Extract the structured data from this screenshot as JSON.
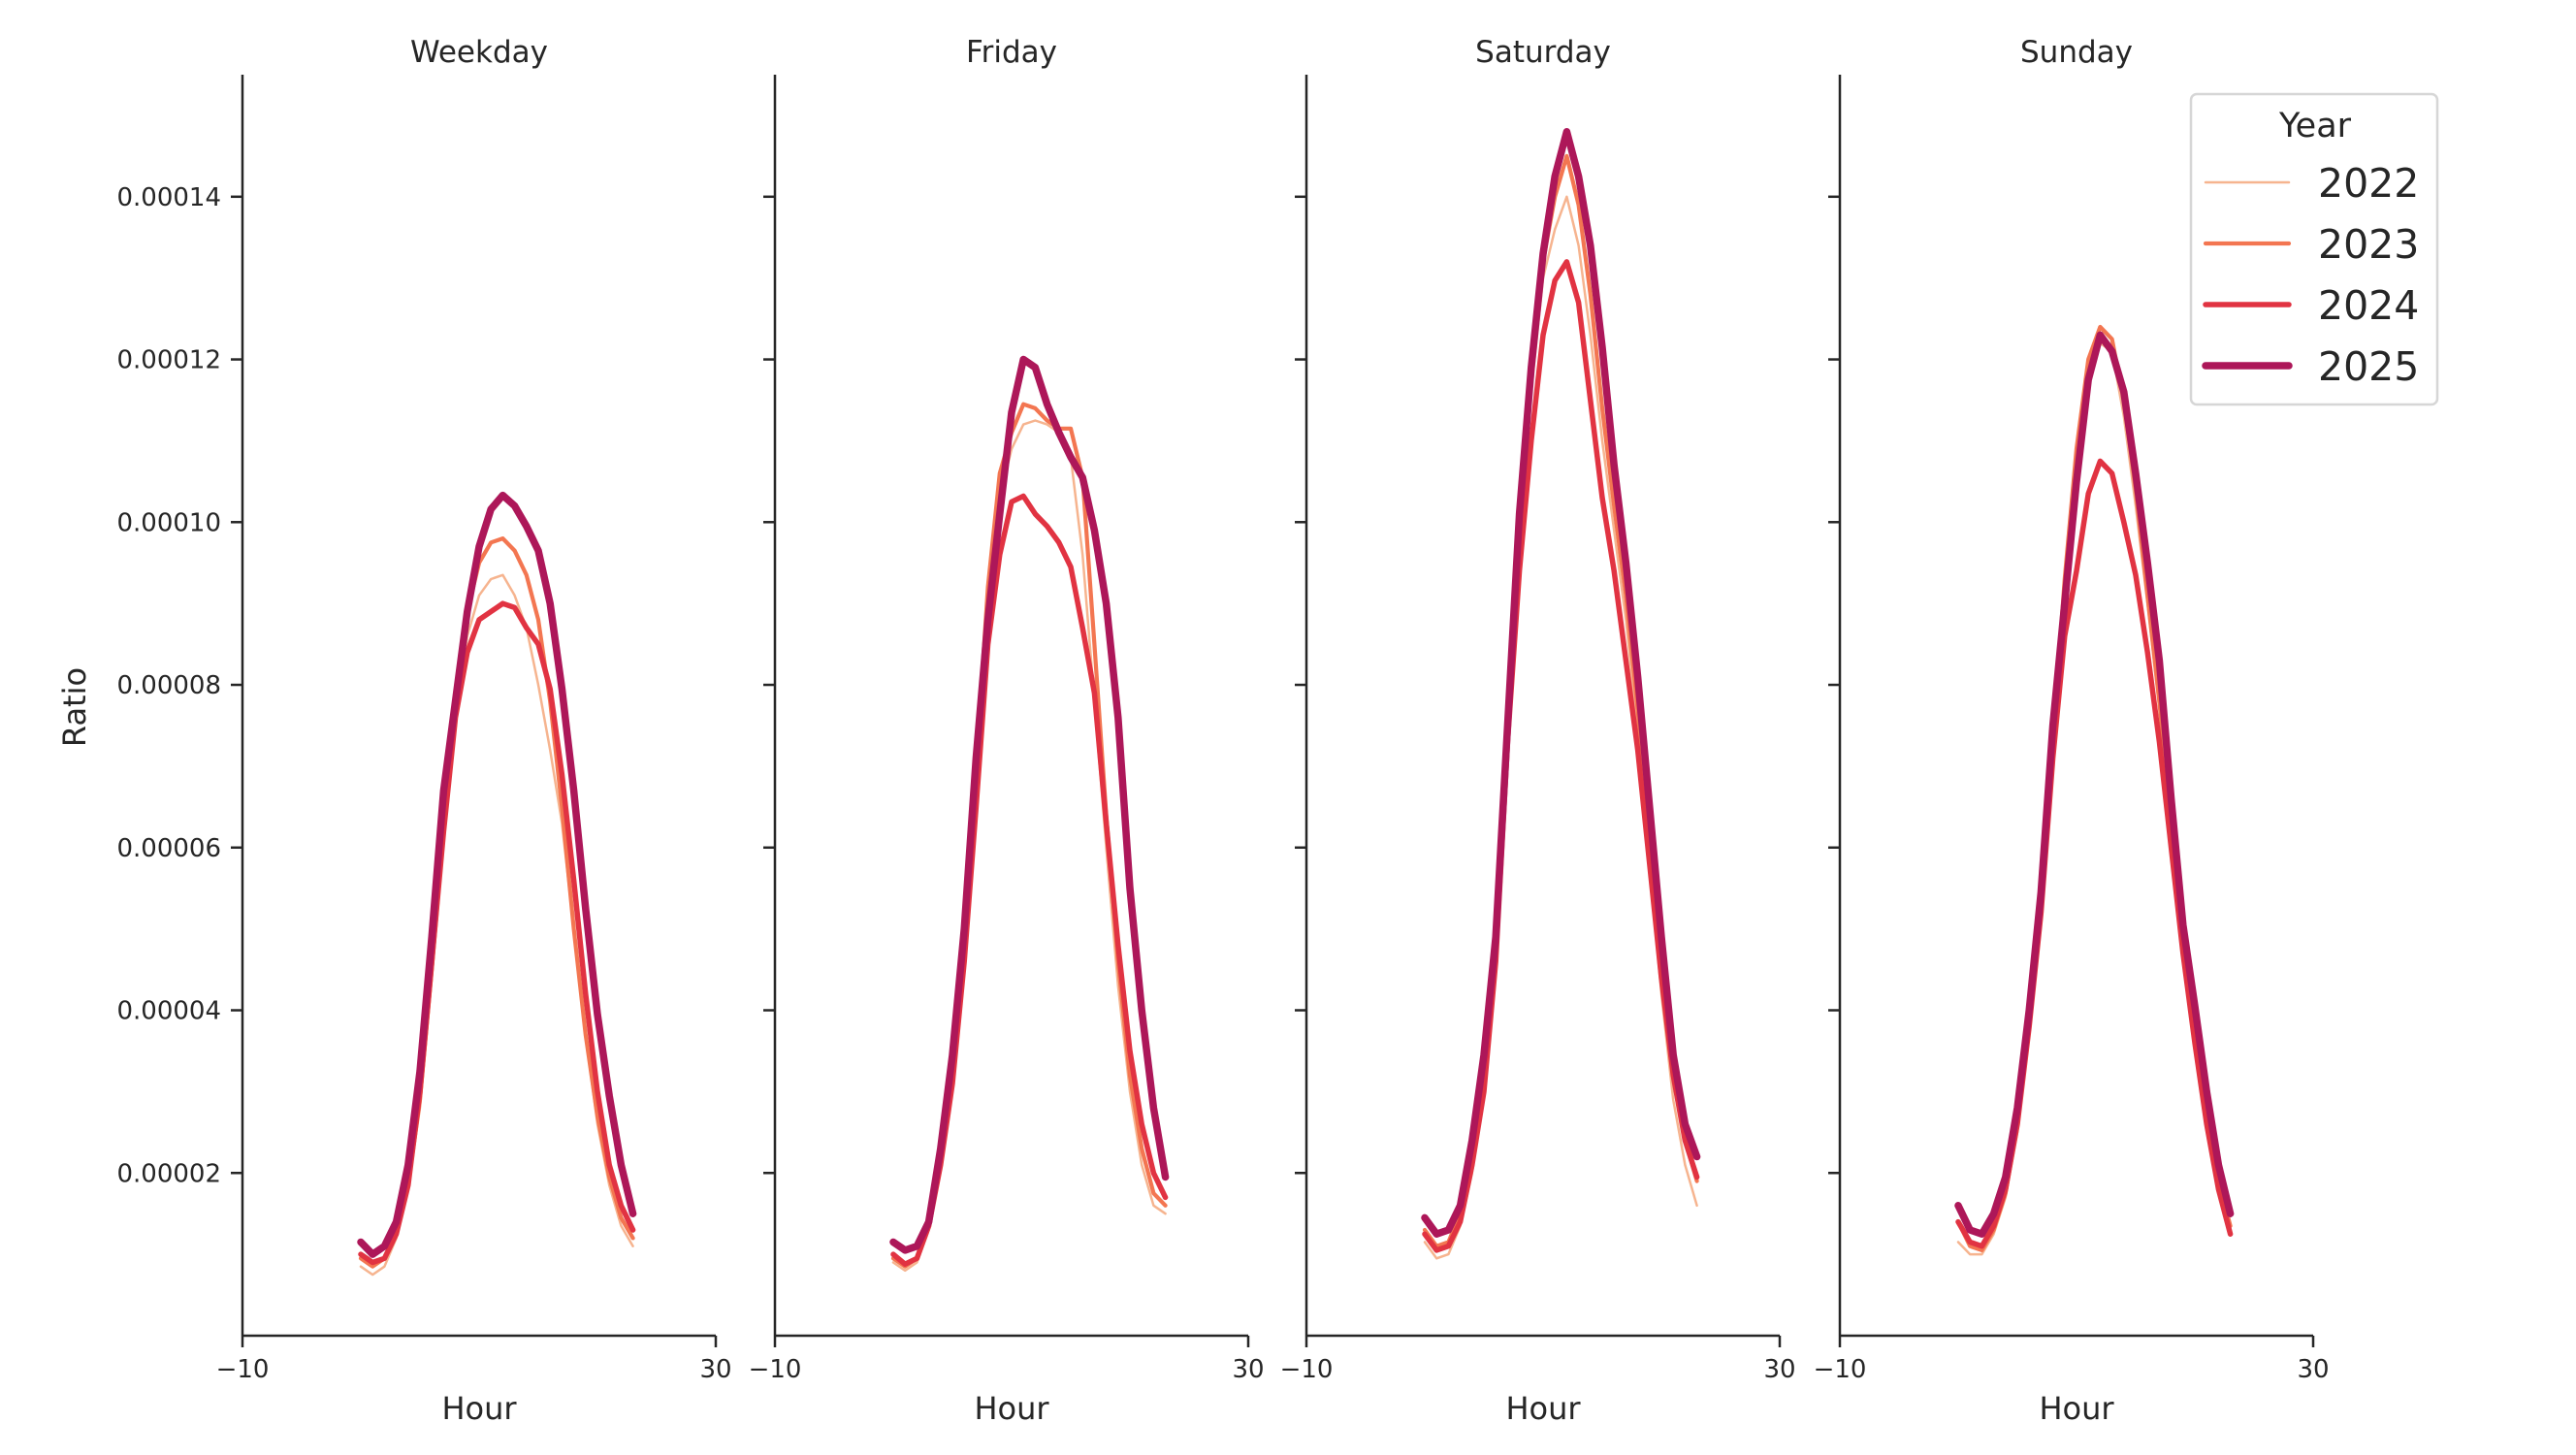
{
  "chart_data": {
    "type": "line",
    "xlabel": "Hour",
    "ylabel": "Ratio",
    "xlim": [
      -10,
      30
    ],
    "ylim": [
      0,
      0.000155
    ],
    "xticks": [
      -10,
      30
    ],
    "xtick_labels": [
      "−10",
      "30"
    ],
    "yticks": [
      2e-05,
      4e-05,
      6e-05,
      8e-05,
      0.0001,
      0.00012,
      0.00014
    ],
    "ytick_labels": [
      "0.00002",
      "0.00004",
      "0.00006",
      "0.00008",
      "0.00010",
      "0.00012",
      "0.00014"
    ],
    "grid": false,
    "legend": {
      "title": "Year",
      "placement": "top-right"
    },
    "x": [
      0,
      1,
      2,
      3,
      4,
      5,
      6,
      7,
      8,
      9,
      10,
      11,
      12,
      13,
      14,
      15,
      16,
      17,
      18,
      19,
      20,
      21,
      22,
      23
    ],
    "series_styles": [
      {
        "name": "2022",
        "color": "#f6b48f"
      },
      {
        "name": "2023",
        "color": "#f37651"
      },
      {
        "name": "2024",
        "color": "#e13342"
      },
      {
        "name": "2025",
        "color": "#ad1759"
      }
    ],
    "panels": [
      {
        "title": "Weekday",
        "series": [
          {
            "name": "2022",
            "values": [
              8.5e-06,
              7.5e-06,
              8.5e-06,
              1.2e-05,
              1.8e-05,
              2.8e-05,
              4.4e-05,
              6.1e-05,
              7.6e-05,
              8.6e-05,
              9.1e-05,
              9.3e-05,
              9.35e-05,
              9.1e-05,
              8.7e-05,
              8e-05,
              7.2e-05,
              6.3e-05,
              5e-05,
              3.7e-05,
              2.6e-05,
              1.85e-05,
              1.35e-05,
              1.1e-05
            ]
          },
          {
            "name": "2023",
            "values": [
              9.5e-06,
              8.5e-06,
              9.5e-06,
              1.25e-05,
              1.85e-05,
              2.9e-05,
              4.5e-05,
              6.2e-05,
              7.7e-05,
              8.9e-05,
              9.5e-05,
              9.75e-05,
              9.8e-05,
              9.65e-05,
              9.35e-05,
              8.8e-05,
              7.8e-05,
              6.5e-05,
              5e-05,
              3.7e-05,
              2.7e-05,
              1.95e-05,
              1.45e-05,
              1.2e-05
            ]
          },
          {
            "name": "2024",
            "values": [
              1e-05,
              9e-06,
              9.5e-06,
              1.25e-05,
              1.85e-05,
              3e-05,
              4.6e-05,
              6.2e-05,
              7.6e-05,
              8.4e-05,
              8.8e-05,
              8.9e-05,
              9e-05,
              8.95e-05,
              8.7e-05,
              8.5e-05,
              7.95e-05,
              6.9e-05,
              5.6e-05,
              4.2e-05,
              3e-05,
              2.1e-05,
              1.6e-05,
              1.3e-05
            ]
          },
          {
            "name": "2025",
            "values": [
              1.15e-05,
              1e-05,
              1.1e-05,
              1.4e-05,
              2.1e-05,
              3.25e-05,
              4.9e-05,
              6.7e-05,
              7.8e-05,
              8.9e-05,
              9.7e-05,
              0.0001016,
              0.0001033,
              0.000102,
              9.95e-05,
              9.65e-05,
              9e-05,
              7.95e-05,
              6.7e-05,
              5.25e-05,
              3.95e-05,
              2.95e-05,
              2.1e-05,
              1.5e-05
            ]
          }
        ]
      },
      {
        "title": "Friday",
        "series": [
          {
            "name": "2022",
            "values": [
              9e-06,
              8e-06,
              9e-06,
              1.3e-05,
              2.1e-05,
              3.2e-05,
              4.8e-05,
              6.8e-05,
              8.9e-05,
              0.000103,
              0.000109,
              0.000112,
              0.0001125,
              0.000112,
              0.000111,
              0.000108,
              9.6e-05,
              7.8e-05,
              6e-05,
              4.3e-05,
              3e-05,
              2.1e-05,
              1.6e-05,
              1.5e-05
            ]
          },
          {
            "name": "2023",
            "values": [
              9.5e-06,
              8.5e-06,
              9.5e-06,
              1.35e-05,
              2.2e-05,
              3.3e-05,
              4.9e-05,
              7e-05,
              9.2e-05,
              0.000106,
              0.000111,
              0.0001145,
              0.000114,
              0.0001125,
              0.0001115,
              0.0001115,
              0.0001055,
              8.5e-05,
              6.4e-05,
              4.6e-05,
              3.2e-05,
              2.3e-05,
              1.75e-05,
              1.6e-05
            ]
          },
          {
            "name": "2024",
            "values": [
              1e-05,
              8.8e-06,
              9.5e-06,
              1.35e-05,
              2.1e-05,
              3.1e-05,
              4.6e-05,
              6.5e-05,
              8.5e-05,
              9.6e-05,
              0.0001025,
              0.0001032,
              0.000101,
              9.95e-05,
              9.75e-05,
              9.45e-05,
              8.7e-05,
              7.9e-05,
              6.3e-05,
              4.8e-05,
              3.5e-05,
              2.6e-05,
              2e-05,
              1.7e-05
            ]
          },
          {
            "name": "2025",
            "values": [
              1.15e-05,
              1.05e-05,
              1.1e-05,
              1.4e-05,
              2.3e-05,
              3.45e-05,
              5e-05,
              7.1e-05,
              8.8e-05,
              0.000101,
              0.0001135,
              0.00012,
              0.000119,
              0.0001145,
              0.000111,
              0.000108,
              0.0001055,
              9.9e-05,
              9e-05,
              7.6e-05,
              5.5e-05,
              4e-05,
              2.8e-05,
              1.95e-05
            ]
          }
        ]
      },
      {
        "title": "Saturday",
        "series": [
          {
            "name": "2022",
            "values": [
              1.15e-05,
              9.5e-06,
              1e-05,
              1.35e-05,
              2e-05,
              3e-05,
              4.5e-05,
              7.1e-05,
              9.6e-05,
              0.000116,
              0.00013,
              0.000136,
              0.00014,
              0.000134,
              0.000123,
              0.00011,
              9.9e-05,
              8.8e-05,
              7.4e-05,
              5.8e-05,
              4.2e-05,
              2.9e-05,
              2.1e-05,
              1.6e-05
            ]
          },
          {
            "name": "2023",
            "values": [
              1.3e-05,
              1.1e-05,
              1.15e-05,
              1.5e-05,
              2.2e-05,
              3.2e-05,
              4.7e-05,
              7.3e-05,
              9.8e-05,
              0.000118,
              0.000132,
              0.00014,
              0.000145,
              0.000139,
              0.000128,
              0.000114,
              0.000102,
              9.1e-05,
              7.7e-05,
              6.1e-05,
              4.5e-05,
              3.2e-05,
              2.4e-05,
              1.9e-05
            ]
          },
          {
            "name": "2024",
            "values": [
              1.25e-05,
              1.05e-05,
              1.1e-05,
              1.4e-05,
              2.1e-05,
              3e-05,
              4.6e-05,
              7.3e-05,
              9.4e-05,
              0.00011,
              0.000123,
              0.0001297,
              0.000132,
              0.000127,
              0.000115,
              0.000103,
              9.4e-05,
              8.3e-05,
              7.2e-05,
              5.8e-05,
              4.4e-05,
              3.2e-05,
              2.4e-05,
              1.95e-05
            ]
          },
          {
            "name": "2025",
            "values": [
              1.45e-05,
              1.25e-05,
              1.3e-05,
              1.6e-05,
              2.4e-05,
              3.45e-05,
              4.9e-05,
              7.5e-05,
              0.000101,
              0.000119,
              0.000133,
              0.0001425,
              0.000148,
              0.0001425,
              0.000134,
              0.0001215,
              0.000107,
              9.5e-05,
              8.1e-05,
              6.5e-05,
              4.9e-05,
              3.45e-05,
              2.6e-05,
              2.2e-05
            ]
          }
        ]
      },
      {
        "title": "Sunday",
        "series": [
          {
            "name": "2022",
            "values": [
              1.15e-05,
              1e-05,
              1e-05,
              1.25e-05,
              1.7e-05,
              2.5e-05,
              3.7e-05,
              5.2e-05,
              7.2e-05,
              9.1e-05,
              0.000107,
              0.000119,
              0.000122,
              0.000121,
              0.000113,
              0.000102,
              9e-05,
              7.7e-05,
              6.2e-05,
              4.8e-05,
              3.7e-05,
              2.7e-05,
              1.85e-05,
              1.3e-05
            ]
          },
          {
            "name": "2023",
            "values": [
              1.4e-05,
              1.1e-05,
              1.05e-05,
              1.3e-05,
              1.75e-05,
              2.6e-05,
              3.8e-05,
              5.3e-05,
              7.3e-05,
              9.3e-05,
              0.000109,
              0.00012,
              0.000124,
              0.0001225,
              0.000115,
              0.000104,
              9.1e-05,
              7.8e-05,
              6.3e-05,
              4.9e-05,
              3.8e-05,
              2.8e-05,
              1.9e-05,
              1.35e-05
            ]
          },
          {
            "name": "2024",
            "values": [
              1.4e-05,
              1.15e-05,
              1.1e-05,
              1.35e-05,
              1.8e-05,
              2.6e-05,
              3.8e-05,
              5.2e-05,
              7.1e-05,
              8.6e-05,
              9.4e-05,
              0.0001035,
              0.0001075,
              0.000106,
              0.0001,
              9.35e-05,
              8.4e-05,
              7.3e-05,
              6e-05,
              4.7e-05,
              3.6e-05,
              2.6e-05,
              1.8e-05,
              1.25e-05
            ]
          },
          {
            "name": "2025",
            "values": [
              1.6e-05,
              1.3e-05,
              1.25e-05,
              1.5e-05,
              1.95e-05,
              2.8e-05,
              4e-05,
              5.45e-05,
              7.5e-05,
              9e-05,
              0.000105,
              0.0001175,
              0.000123,
              0.000121,
              0.000116,
              0.000106,
              9.5e-05,
              8.3e-05,
              6.6e-05,
              5.05e-05,
              4.05e-05,
              3e-05,
              2.1e-05,
              1.5e-05
            ]
          }
        ]
      }
    ]
  }
}
